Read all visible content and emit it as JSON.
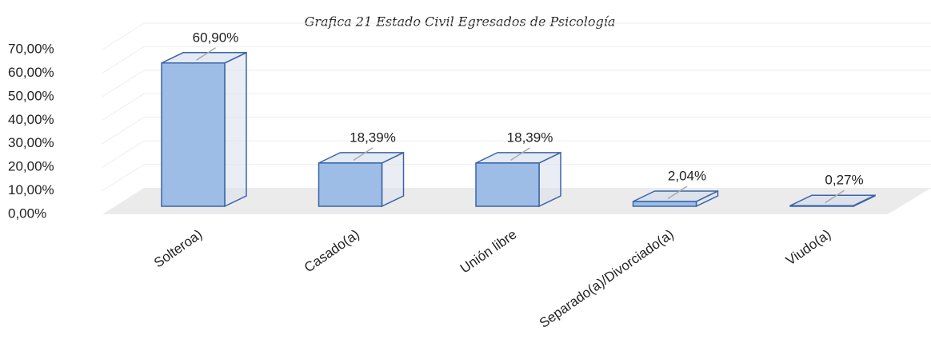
{
  "chart_data": {
    "type": "bar3d",
    "title": "Grafica 21 Estado Civil Egresados de Psicología",
    "categories": [
      "Solteroa)",
      "Casado(a)",
      "Unión libre",
      "Separado(a)/Divorciado(a)",
      "Viudo(a)"
    ],
    "values": [
      60.9,
      18.39,
      18.39,
      2.04,
      0.27
    ],
    "value_labels": [
      "60,90%",
      "18,39%",
      "18,39%",
      "2,04%",
      "0,27%"
    ],
    "color": "#9dbde6",
    "ylim": [
      0,
      70
    ],
    "yticks": [
      {
        "value": 0,
        "label": "0,00%"
      },
      {
        "value": 10,
        "label": "10,00%"
      },
      {
        "value": 20,
        "label": "20,00%"
      },
      {
        "value": 30,
        "label": "30,00%"
      },
      {
        "value": 40,
        "label": "40,00%"
      },
      {
        "value": 50,
        "label": "50,00%"
      },
      {
        "value": 60,
        "label": "60,00%"
      },
      {
        "value": 70,
        "label": "70,00%"
      }
    ],
    "grid": true
  }
}
